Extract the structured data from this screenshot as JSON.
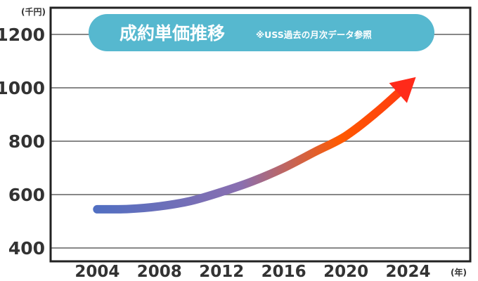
{
  "chart_data": {
    "type": "line",
    "title": "成約単価推移",
    "subtitle": "※USS過去の月次データ参照",
    "y_unit": "(千円)",
    "x_unit": "(年)",
    "xlabel": "",
    "ylabel": "",
    "xlim": [
      2001,
      2028
    ],
    "ylim": [
      350,
      1300
    ],
    "grid": true,
    "y_ticks": [
      "400",
      "600",
      "800",
      "1000",
      "1200"
    ],
    "x_ticks": [
      "2004",
      "2008",
      "2012",
      "2016",
      "2020",
      "2024"
    ],
    "y_tick_values": [
      400,
      600,
      800,
      1000,
      1200
    ],
    "x_tick_values": [
      2004,
      2008,
      2012,
      2016,
      2020,
      2024
    ],
    "series": [
      {
        "name": "成約単価",
        "x": [
          2004,
          2006,
          2008,
          2010,
          2012,
          2014,
          2016,
          2018,
          2020,
          2022,
          2024.5
        ],
        "y": [
          545,
          546,
          556,
          576,
          610,
          650,
          700,
          760,
          820,
          910,
          1040
        ]
      }
    ],
    "arrow_at_end": true,
    "gradient_colors": [
      "#4a6fc4",
      "#ff5a00",
      "#ff2a1a"
    ]
  },
  "colors": {
    "title_bg": "#56b8cf",
    "grid": "#888888",
    "axis": "#222222"
  }
}
